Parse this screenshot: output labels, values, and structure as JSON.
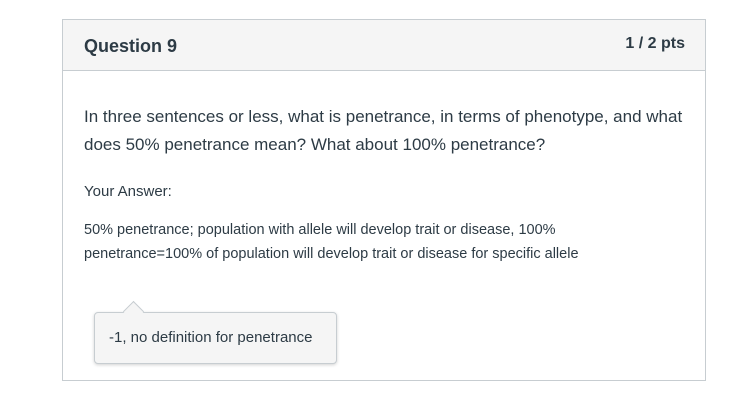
{
  "question": {
    "title": "Question 9",
    "points": "1 / 2 pts",
    "prompt": "In three sentences or less, what is penetrance, in terms of phenotype, and what does 50% penetrance mean? What about 100% penetrance?"
  },
  "answer": {
    "label": "Your Answer:",
    "text": "50% penetrance; population with allele will develop trait or disease, 100% penetrance=100% of population will develop trait or disease for specific allele"
  },
  "comment": {
    "text": "-1, no definition for penetrance"
  }
}
